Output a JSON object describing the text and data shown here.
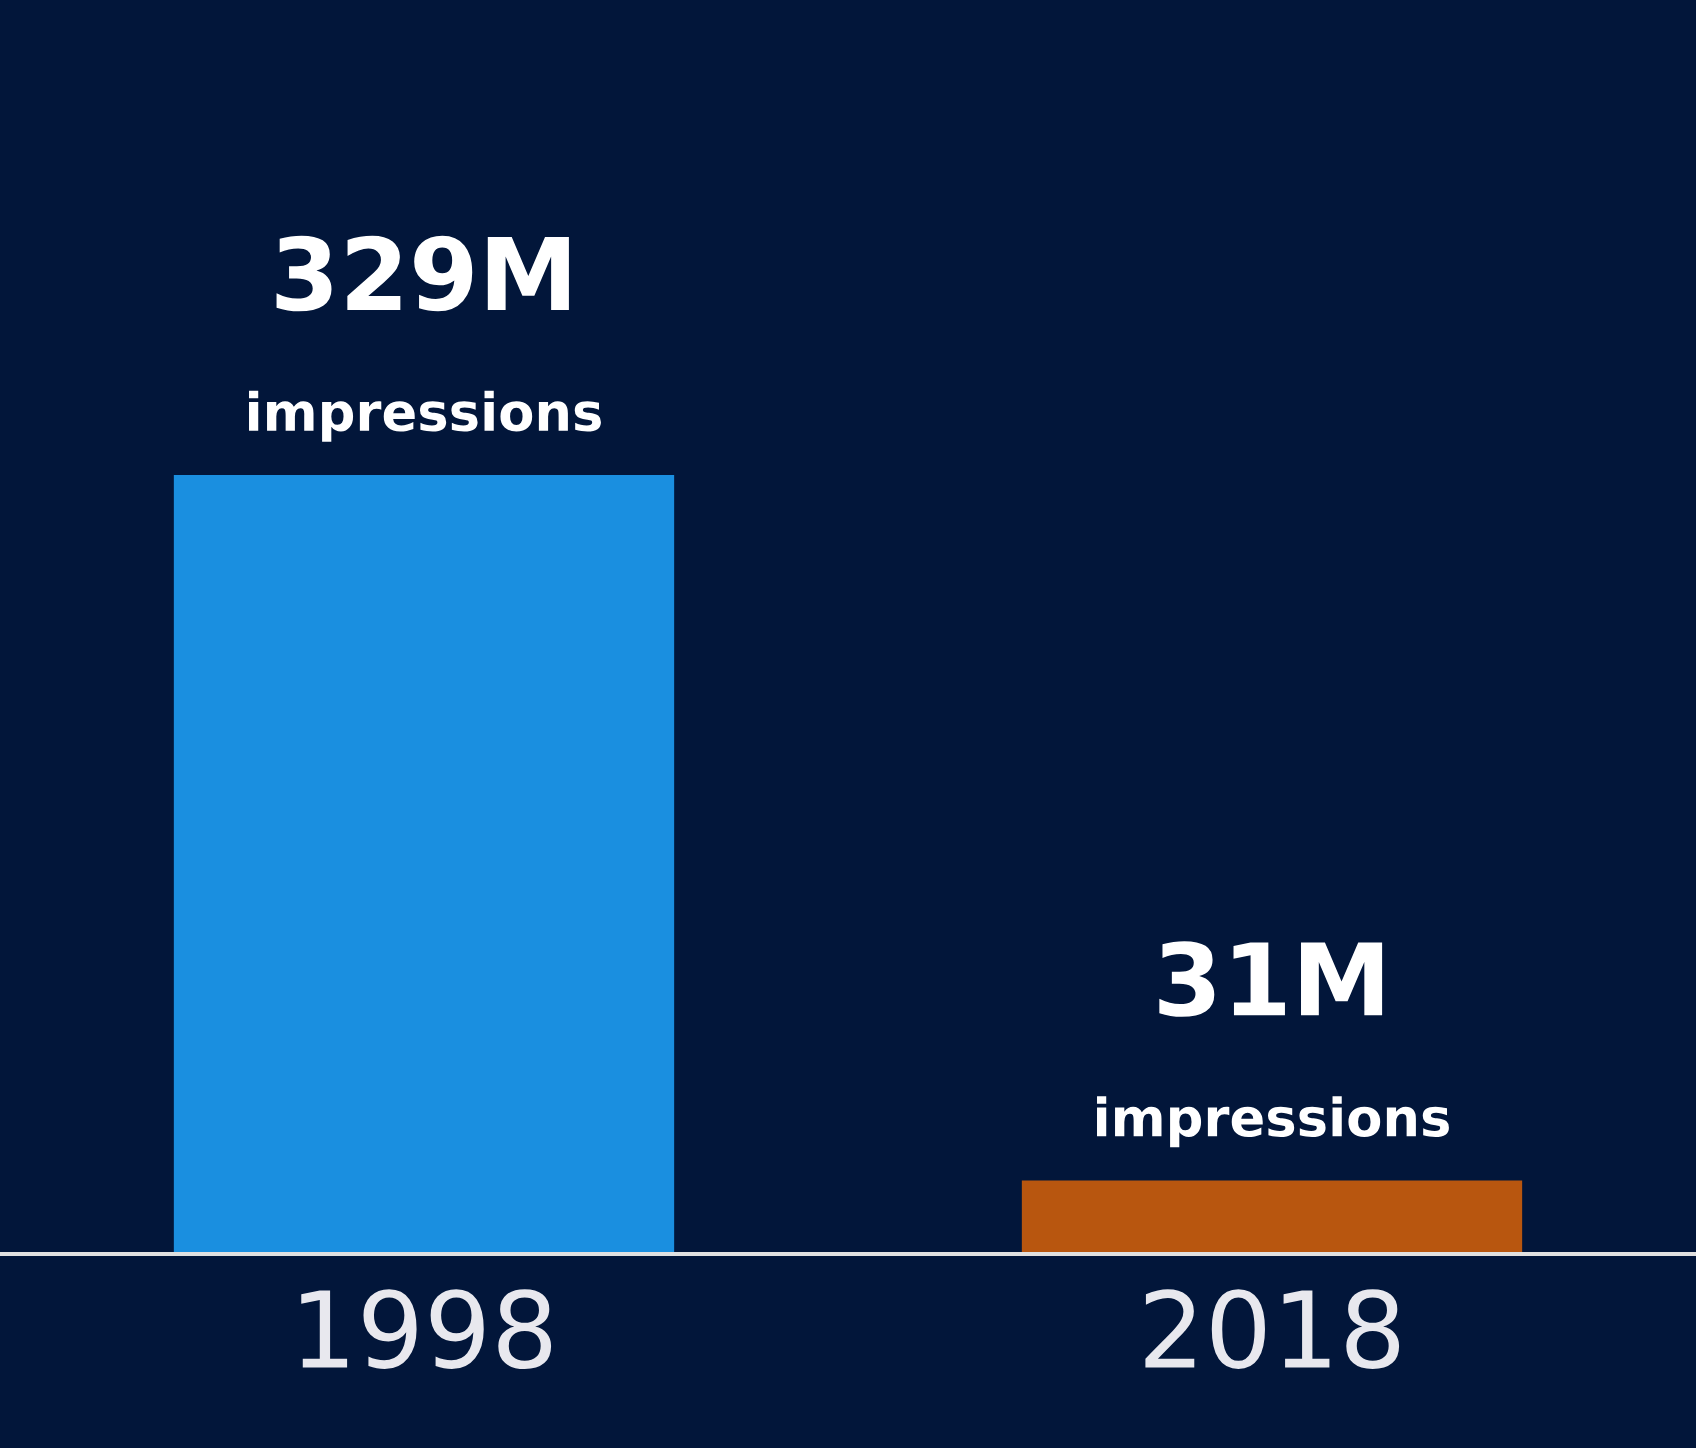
{
  "chart_data": {
    "type": "bar",
    "categories": [
      "1998",
      "2018"
    ],
    "values": [
      329,
      31
    ],
    "colors": [
      "#1a8fe0",
      "#b8560f"
    ],
    "value_labels": [
      "329M\nimpressions",
      "31M\nimpressions"
    ]
  }
}
